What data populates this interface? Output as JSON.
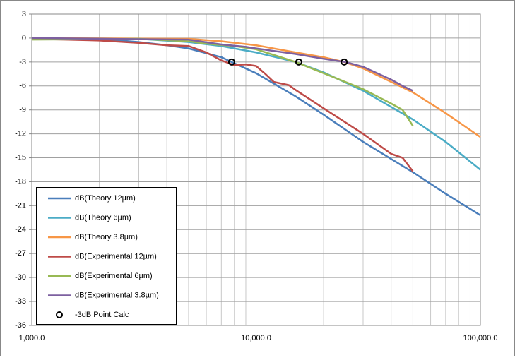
{
  "chart_data": {
    "type": "line",
    "xlim": [
      1000,
      100000
    ],
    "ylim": [
      -36,
      3
    ],
    "log_x": true,
    "grid": true,
    "xticks": [
      {
        "value": 1000,
        "label": "1,000.0"
      },
      {
        "value": 10000,
        "label": "10,000.0"
      },
      {
        "value": 100000,
        "label": "100,000.0"
      }
    ],
    "yticks": [
      3,
      0,
      -3,
      -6,
      -9,
      -12,
      -15,
      -18,
      -21,
      -24,
      -27,
      -30,
      -33,
      -36
    ],
    "legend": "lower left",
    "series": [
      {
        "name": "dB(Theory 12µm)",
        "color": "#4a7ebb",
        "x": [
          1000,
          2000,
          3000,
          4000,
          5000,
          7000,
          7780,
          10000,
          15000,
          20000,
          30000,
          50000,
          70000,
          100000
        ],
        "values": [
          0,
          -0.1,
          -0.5,
          -0.9,
          -1.3,
          -2.4,
          -3,
          -4.4,
          -7.3,
          -9.6,
          -13,
          -16.8,
          -19.5,
          -22.2
        ]
      },
      {
        "name": "dB(Theory 6µm)",
        "color": "#4bacc6",
        "x": [
          1000,
          3000,
          5000,
          7000,
          10000,
          15000,
          20000,
          30000,
          50000,
          70000,
          100000
        ],
        "values": [
          0,
          -0.1,
          -0.5,
          -1,
          -1.8,
          -3,
          -4.3,
          -6.6,
          -10.2,
          -13,
          -16.5
        ]
      },
      {
        "name": "dB(Theory 3.8µm)",
        "color": "#f79646",
        "x": [
          1000,
          5000,
          7000,
          10000,
          15000,
          20000,
          24700,
          30000,
          50000,
          70000,
          100000
        ],
        "values": [
          0,
          -0.1,
          -0.4,
          -0.9,
          -1.8,
          -2.4,
          -3,
          -3.8,
          -6.8,
          -9.4,
          -12.4
        ]
      },
      {
        "name": "dB(Experimental 12µm)",
        "color": "#be4b48",
        "x": [
          1000,
          2000,
          3000,
          4000,
          5000,
          6000,
          7000,
          8000,
          9000,
          10000,
          11000,
          12000,
          14000,
          15000,
          17000,
          20000,
          30000,
          40000,
          45000,
          50000
        ],
        "values": [
          -0.1,
          -0.3,
          -0.6,
          -0.9,
          -1,
          -1.8,
          -2.8,
          -3.4,
          -3.3,
          -3.5,
          -4.5,
          -5.5,
          -5.9,
          -6.5,
          -7.5,
          -8.8,
          -12,
          -14.5,
          -15,
          -16.7
        ]
      },
      {
        "name": "dB(Experimental 6µm)",
        "color": "#98b954",
        "x": [
          1000,
          3000,
          5000,
          6000,
          8000,
          10000,
          15000,
          20000,
          30000,
          40000,
          45000,
          50000
        ],
        "values": [
          -0.2,
          -0.1,
          -0.4,
          -0.7,
          -1,
          -1.4,
          -3,
          -4.4,
          -6.4,
          -8.2,
          -9,
          -11
        ]
      },
      {
        "name": "dB(Experimental 3.8µm)",
        "color": "#7d60a0",
        "x": [
          1000,
          5000,
          7000,
          9000,
          10000,
          15000,
          20000,
          25000,
          30000,
          40000,
          45000,
          50000
        ],
        "values": [
          0,
          -0.2,
          -0.8,
          -1.1,
          -1.3,
          -2,
          -2.6,
          -3,
          -3.6,
          -5.2,
          -6,
          -6.6
        ]
      },
      {
        "name": "-3dB Point Calc",
        "type": "scatter",
        "color": "#000000",
        "x": [
          7780,
          15500,
          24700
        ],
        "values": [
          -3,
          -3,
          -3
        ]
      }
    ]
  }
}
